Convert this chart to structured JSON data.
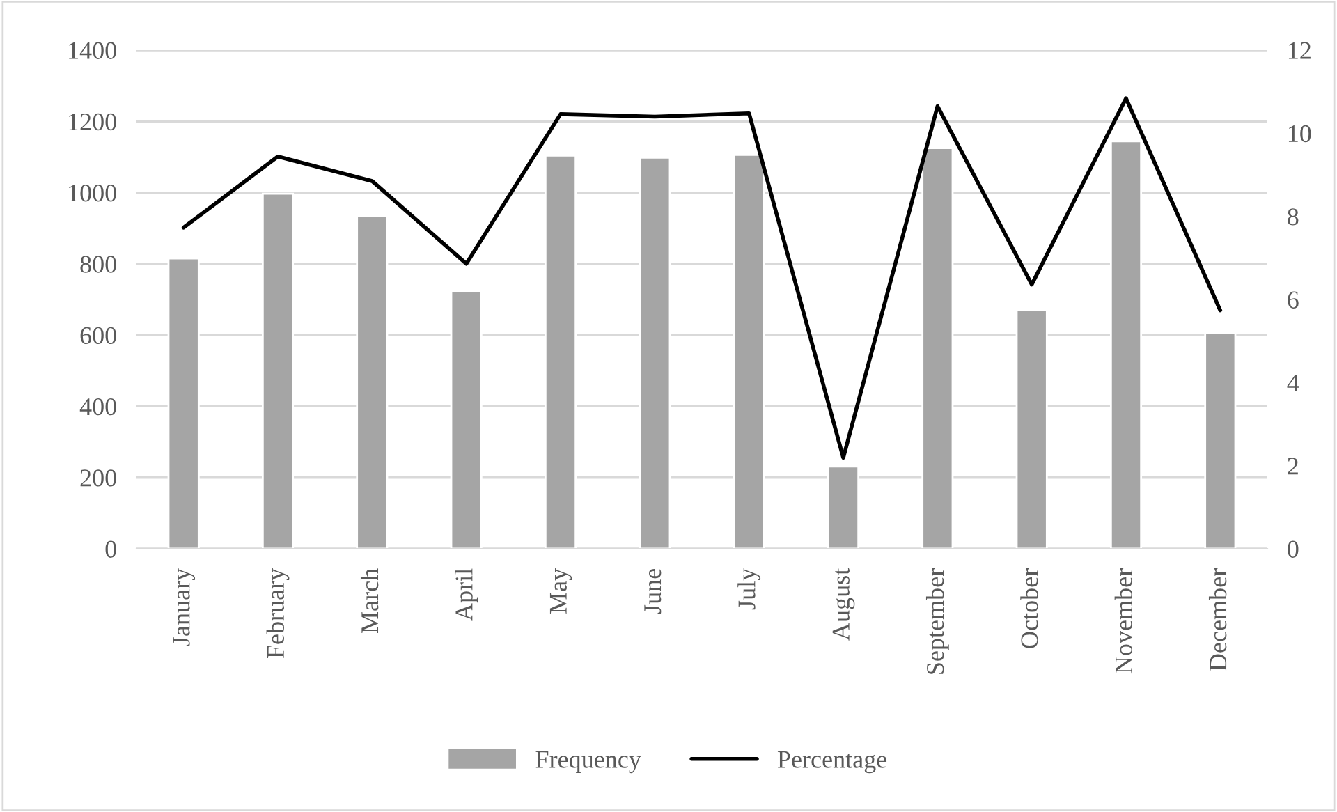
{
  "chart_data": {
    "type": "bar",
    "categories": [
      "January",
      "February",
      "March",
      "April",
      "May",
      "June",
      "July",
      "August",
      "September",
      "October",
      "November",
      "December"
    ],
    "series": [
      {
        "name": "Frequency",
        "color": "#a5a5a5",
        "values": [
          815,
          997,
          934,
          723,
          1104,
          1098,
          1106,
          231,
          1125,
          671,
          1144,
          605
        ]
      },
      {
        "name": "Percentage",
        "type": "line",
        "axis": "y2",
        "color": "#000000",
        "values": [
          7.73,
          9.44,
          8.85,
          6.86,
          10.46,
          10.4,
          10.48,
          2.19,
          10.65,
          6.36,
          10.84,
          5.74
        ]
      }
    ],
    "ylim": [
      0,
      1400
    ],
    "yticks": [
      0,
      200,
      400,
      600,
      800,
      1000,
      1200,
      1400
    ],
    "y2lim": [
      0,
      12
    ],
    "y2ticks": [
      0,
      2,
      4,
      6,
      8,
      10,
      12
    ],
    "grid": "y",
    "legend": "bottom",
    "marker": "none",
    "line_style": "solid"
  }
}
